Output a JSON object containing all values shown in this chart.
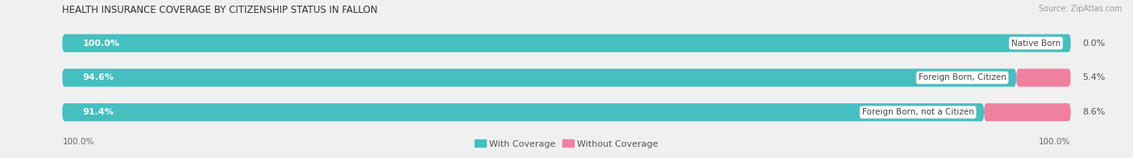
{
  "title": "HEALTH INSURANCE COVERAGE BY CITIZENSHIP STATUS IN FALLON",
  "source": "Source: ZipAtlas.com",
  "categories": [
    "Native Born",
    "Foreign Born, Citizen",
    "Foreign Born, not a Citizen"
  ],
  "with_coverage": [
    100.0,
    94.6,
    91.4
  ],
  "without_coverage": [
    0.0,
    5.4,
    8.6
  ],
  "color_with": "#45bfc0",
  "color_without": "#f080a0",
  "bg_color": "#f0f0f0",
  "bar_bg_color": "#e0e0e0",
  "bar_inner_bg": "#ffffff",
  "title_fontsize": 8.5,
  "source_fontsize": 7,
  "label_fontsize": 8,
  "tick_fontsize": 7.5,
  "legend_fontsize": 8,
  "left_label": "100.0%",
  "right_label": "100.0%"
}
